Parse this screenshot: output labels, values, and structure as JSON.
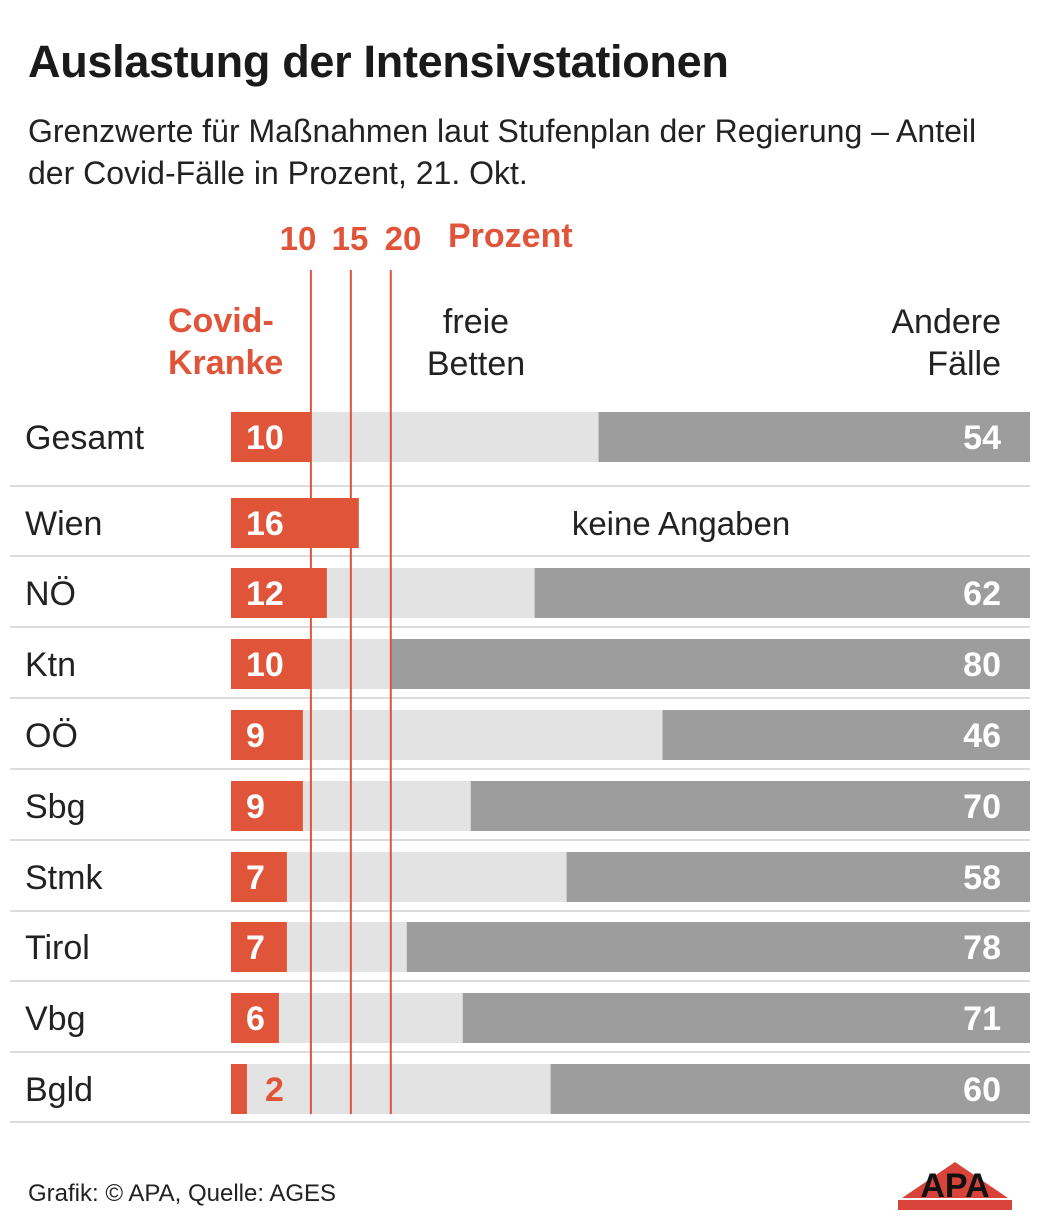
{
  "title": "Auslastung der Intensivstationen",
  "subtitle": "Grenzwerte für Maßnahmen laut Stufenplan der Regierung – Anteil der Covid-Fälle in Prozent, 21. Okt.",
  "source": "Grafik: © APA, Quelle: AGES",
  "logo_text": "APA",
  "colors": {
    "covid": "#e0553a",
    "free_beds": "#e3e3e3",
    "other": "#9d9d9d",
    "threshold": "#e0553a",
    "divider": "#dcdcdc"
  },
  "chart_data": {
    "type": "bar",
    "stacked": true,
    "orientation": "horizontal",
    "xlim": [
      0,
      100
    ],
    "thresholds": [
      10,
      15,
      20
    ],
    "threshold_unit": "Prozent",
    "column_headers": {
      "covid": [
        "Covid-",
        "Kranke"
      ],
      "free": [
        "freie",
        "Betten"
      ],
      "other": [
        "Andere",
        "Fälle"
      ]
    },
    "categories": [
      "Gesamt",
      "Wien",
      "NÖ",
      "Ktn",
      "OÖ",
      "Sbg",
      "Stmk",
      "Tirol",
      "Vbg",
      "Bgld"
    ],
    "series": [
      {
        "name": "Covid-Kranke",
        "values": [
          10,
          16,
          12,
          10,
          9,
          9,
          7,
          7,
          6,
          2
        ]
      },
      {
        "name": "freie Betten",
        "values": [
          36,
          null,
          26,
          10,
          45,
          21,
          35,
          15,
          23,
          38
        ]
      },
      {
        "name": "Andere Fälle",
        "values": [
          54,
          null,
          62,
          80,
          46,
          70,
          58,
          78,
          71,
          60
        ]
      }
    ],
    "annotations": [
      {
        "category": "Wien",
        "text": "keine Angaben"
      }
    ]
  }
}
